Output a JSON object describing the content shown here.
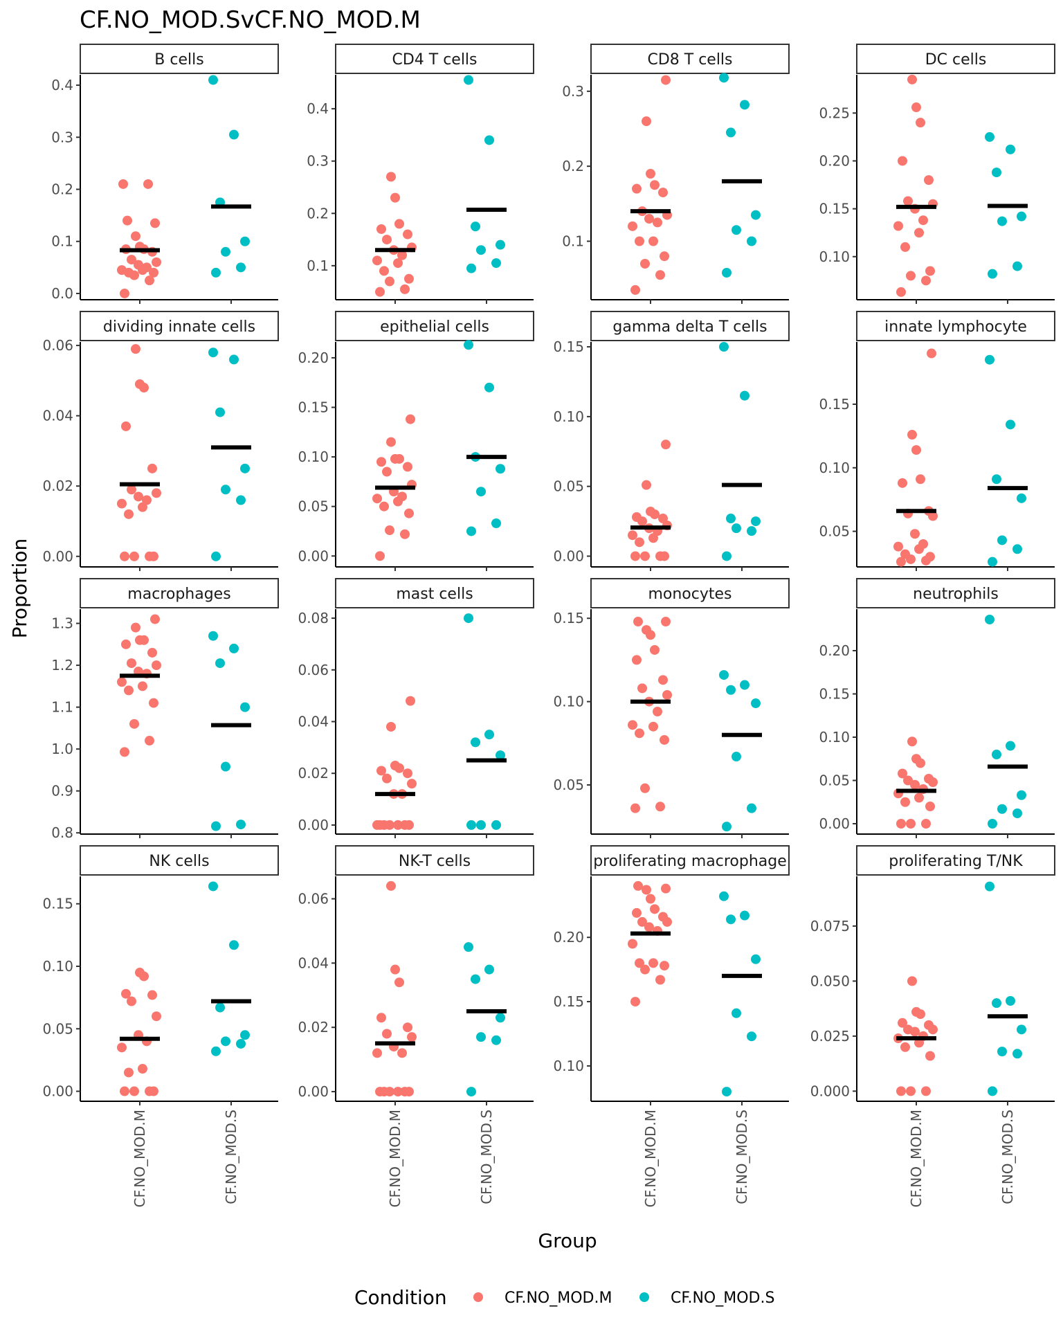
{
  "chart_data": {
    "type": "scatter",
    "title": "CF.NO_MOD.SvCF.NO_MOD.M",
    "xlabel": "Group",
    "ylabel": "Proportion",
    "categories": [
      "CF.NO_MOD.M",
      "CF.NO_MOD.S"
    ],
    "legend": {
      "title": "Condition",
      "position": "bottom",
      "entries": [
        {
          "label": "CF.NO_MOD.M",
          "color": "#F8766D"
        },
        {
          "label": "CF.NO_MOD.S",
          "color": "#00BFC4"
        }
      ]
    },
    "colors": {
      "CF.NO_MOD.M": "#F8766D",
      "CF.NO_MOD.S": "#00BFC4",
      "median": "#000000"
    },
    "facets": [
      {
        "name": "B cells",
        "ylim": [
          -0.012,
          0.42
        ],
        "yticks": [
          "0.0",
          "0.1",
          "0.2",
          "0.3",
          "0.4"
        ],
        "series": [
          {
            "name": "CF.NO_MOD.M",
            "median": 0.083,
            "values": [
              0.0,
              0.025,
              0.035,
              0.04,
              0.04,
              0.045,
              0.045,
              0.05,
              0.055,
              0.06,
              0.065,
              0.08,
              0.085,
              0.085,
              0.09,
              0.11,
              0.135,
              0.14,
              0.21,
              0.21
            ]
          },
          {
            "name": "CF.NO_MOD.S",
            "median": 0.167,
            "values": [
              0.04,
              0.05,
              0.08,
              0.1,
              0.175,
              0.305,
              0.41
            ]
          }
        ]
      },
      {
        "name": "CD4 T cells",
        "ylim": [
          0.035,
          0.465
        ],
        "yticks": [
          "0.1",
          "0.2",
          "0.3",
          "0.4"
        ],
        "series": [
          {
            "name": "CF.NO_MOD.M",
            "median": 0.13,
            "values": [
              0.05,
              0.055,
              0.07,
              0.075,
              0.09,
              0.105,
              0.11,
              0.12,
              0.13,
              0.135,
              0.15,
              0.16,
              0.17,
              0.18,
              0.23,
              0.27
            ]
          },
          {
            "name": "CF.NO_MOD.S",
            "median": 0.207,
            "values": [
              0.095,
              0.105,
              0.13,
              0.14,
              0.175,
              0.34,
              0.455
            ]
          }
        ]
      },
      {
        "name": "CD8 T cells",
        "ylim": [
          0.022,
          0.322
        ],
        "yticks": [
          "0.1",
          "0.2",
          "0.3"
        ],
        "series": [
          {
            "name": "CF.NO_MOD.M",
            "median": 0.14,
            "values": [
              0.035,
              0.055,
              0.07,
              0.08,
              0.1,
              0.1,
              0.12,
              0.125,
              0.13,
              0.135,
              0.14,
              0.165,
              0.17,
              0.175,
              0.19,
              0.26,
              0.315
            ]
          },
          {
            "name": "CF.NO_MOD.S",
            "median": 0.18,
            "values": [
              0.058,
              0.1,
              0.115,
              0.135,
              0.245,
              0.282,
              0.318
            ]
          }
        ]
      },
      {
        "name": "DC cells",
        "ylim": [
          0.055,
          0.29
        ],
        "yticks": [
          "0.10",
          "0.15",
          "0.20",
          "0.25"
        ],
        "series": [
          {
            "name": "CF.NO_MOD.M",
            "median": 0.152,
            "values": [
              0.063,
              0.075,
              0.08,
              0.085,
              0.11,
              0.125,
              0.132,
              0.138,
              0.15,
              0.155,
              0.158,
              0.18,
              0.2,
              0.24,
              0.256,
              0.285
            ]
          },
          {
            "name": "CF.NO_MOD.S",
            "median": 0.153,
            "values": [
              0.082,
              0.09,
              0.137,
              0.142,
              0.188,
              0.212,
              0.225
            ]
          }
        ]
      },
      {
        "name": "dividing innate cells",
        "ylim": [
          -0.003,
          0.061
        ],
        "yticks": [
          "0.00",
          "0.02",
          "0.04",
          "0.06"
        ],
        "series": [
          {
            "name": "CF.NO_MOD.M",
            "median": 0.0205,
            "values": [
              0.0,
              0.0,
              0.0,
              0.0,
              0.012,
              0.014,
              0.015,
              0.016,
              0.017,
              0.018,
              0.019,
              0.025,
              0.037,
              0.048,
              0.049,
              0.059
            ]
          },
          {
            "name": "CF.NO_MOD.S",
            "median": 0.031,
            "values": [
              0.0,
              0.016,
              0.019,
              0.025,
              0.041,
              0.056,
              0.058
            ]
          }
        ]
      },
      {
        "name": "epithelial cells",
        "ylim": [
          -0.011,
          0.216
        ],
        "yticks": [
          "0.00",
          "0.05",
          "0.10",
          "0.15",
          "0.20"
        ],
        "series": [
          {
            "name": "CF.NO_MOD.M",
            "median": 0.069,
            "values": [
              0.0,
              0.022,
              0.026,
              0.043,
              0.05,
              0.055,
              0.058,
              0.06,
              0.065,
              0.072,
              0.085,
              0.09,
              0.095,
              0.098,
              0.098,
              0.115,
              0.138
            ]
          },
          {
            "name": "CF.NO_MOD.S",
            "median": 0.1,
            "values": [
              0.025,
              0.033,
              0.065,
              0.088,
              0.1,
              0.17,
              0.213
            ]
          }
        ]
      },
      {
        "name": "gamma delta T cells",
        "ylim": [
          -0.0077,
          0.1535
        ],
        "yticks": [
          "0.00",
          "0.05",
          "0.10",
          "0.15"
        ],
        "series": [
          {
            "name": "CF.NO_MOD.M",
            "median": 0.0205,
            "values": [
              0.0,
              0.0,
              0.0,
              0.0,
              0.01,
              0.013,
              0.015,
              0.018,
              0.02,
              0.022,
              0.025,
              0.027,
              0.028,
              0.03,
              0.032,
              0.051,
              0.08
            ]
          },
          {
            "name": "CF.NO_MOD.S",
            "median": 0.051,
            "values": [
              0.0,
              0.018,
              0.02,
              0.025,
              0.027,
              0.115,
              0.15
            ]
          }
        ]
      },
      {
        "name": "innate lymphocyte",
        "ylim": [
          0.022,
          0.199
        ],
        "yticks": [
          "0.05",
          "0.10",
          "0.15"
        ],
        "series": [
          {
            "name": "CF.NO_MOD.M",
            "median": 0.066,
            "values": [
              0.026,
              0.027,
              0.028,
              0.03,
              0.032,
              0.036,
              0.038,
              0.04,
              0.048,
              0.062,
              0.064,
              0.066,
              0.088,
              0.091,
              0.114,
              0.126,
              0.19
            ]
          },
          {
            "name": "CF.NO_MOD.S",
            "median": 0.084,
            "values": [
              0.026,
              0.036,
              0.043,
              0.076,
              0.091,
              0.134,
              0.185
            ]
          }
        ]
      },
      {
        "name": "macrophages",
        "ylim": [
          0.797,
          1.334
        ],
        "yticks": [
          "0.8",
          "0.9",
          "1.0",
          "1.1",
          "1.2",
          "1.3"
        ],
        "series": [
          {
            "name": "CF.NO_MOD.M",
            "median": 1.175,
            "values": [
              0.993,
              1.02,
              1.06,
              1.11,
              1.14,
              1.15,
              1.16,
              1.18,
              1.185,
              1.2,
              1.205,
              1.23,
              1.25,
              1.26,
              1.26,
              1.29,
              1.31
            ]
          },
          {
            "name": "CF.NO_MOD.S",
            "median": 1.057,
            "values": [
              0.816,
              0.82,
              0.958,
              1.1,
              1.205,
              1.24,
              1.27
            ]
          }
        ]
      },
      {
        "name": "mast cells",
        "ylim": [
          -0.0035,
          0.0835
        ],
        "yticks": [
          "0.00",
          "0.02",
          "0.04",
          "0.06",
          "0.08"
        ],
        "series": [
          {
            "name": "CF.NO_MOD.M",
            "median": 0.012,
            "values": [
              0.0,
              0.0,
              0.0,
              0.0,
              0.0,
              0.0,
              0.0,
              0.012,
              0.012,
              0.016,
              0.018,
              0.02,
              0.021,
              0.022,
              0.023,
              0.038,
              0.048
            ]
          },
          {
            "name": "CF.NO_MOD.S",
            "median": 0.025,
            "values": [
              0.0,
              0.0,
              0.0,
              0.027,
              0.032,
              0.035,
              0.08
            ]
          }
        ]
      },
      {
        "name": "monocytes",
        "ylim": [
          0.0205,
          0.1555
        ],
        "yticks": [
          "0.05",
          "0.10",
          "0.15"
        ],
        "series": [
          {
            "name": "CF.NO_MOD.M",
            "median": 0.1,
            "values": [
              0.036,
              0.037,
              0.048,
              0.077,
              0.081,
              0.085,
              0.086,
              0.094,
              0.1,
              0.104,
              0.108,
              0.113,
              0.125,
              0.131,
              0.14,
              0.143,
              0.148,
              0.148
            ]
          },
          {
            "name": "CF.NO_MOD.S",
            "median": 0.08,
            "values": [
              0.025,
              0.036,
              0.067,
              0.099,
              0.107,
              0.11,
              0.116
            ]
          }
        ]
      },
      {
        "name": "neutrophils",
        "ylim": [
          -0.012,
          0.248
        ],
        "yticks": [
          "0.00",
          "0.05",
          "0.10",
          "0.15",
          "0.20"
        ],
        "series": [
          {
            "name": "CF.NO_MOD.M",
            "median": 0.038,
            "values": [
              0.0,
              0.0,
              0.0,
              0.02,
              0.025,
              0.03,
              0.035,
              0.04,
              0.045,
              0.048,
              0.05,
              0.052,
              0.058,
              0.07,
              0.075,
              0.095
            ]
          },
          {
            "name": "CF.NO_MOD.S",
            "median": 0.066,
            "values": [
              0.0,
              0.012,
              0.017,
              0.033,
              0.08,
              0.09,
              0.236
            ]
          }
        ]
      },
      {
        "name": "NK cells",
        "ylim": [
          -0.008,
          0.172
        ],
        "yticks": [
          "0.00",
          "0.05",
          "0.10",
          "0.15"
        ],
        "series": [
          {
            "name": "CF.NO_MOD.M",
            "median": 0.042,
            "values": [
              0.0,
              0.0,
              0.0,
              0.0,
              0.015,
              0.018,
              0.035,
              0.04,
              0.045,
              0.06,
              0.072,
              0.077,
              0.078,
              0.092,
              0.095
            ]
          },
          {
            "name": "CF.NO_MOD.S",
            "median": 0.072,
            "values": [
              0.032,
              0.038,
              0.04,
              0.045,
              0.067,
              0.117,
              0.164
            ]
          }
        ]
      },
      {
        "name": "NK-T cells",
        "ylim": [
          -0.003,
          0.067
        ],
        "yticks": [
          "0.00",
          "0.02",
          "0.04",
          "0.06"
        ],
        "series": [
          {
            "name": "CF.NO_MOD.M",
            "median": 0.015,
            "values": [
              0.0,
              0.0,
              0.0,
              0.0,
              0.0,
              0.0,
              0.012,
              0.012,
              0.014,
              0.017,
              0.018,
              0.02,
              0.023,
              0.034,
              0.038,
              0.064
            ]
          },
          {
            "name": "CF.NO_MOD.S",
            "median": 0.025,
            "values": [
              0.0,
              0.016,
              0.017,
              0.023,
              0.035,
              0.038,
              0.045
            ]
          }
        ]
      },
      {
        "name": "proliferating macrophage",
        "ylim": [
          0.0725,
          0.2475
        ],
        "yticks": [
          "0.10",
          "0.15",
          "0.20"
        ],
        "series": [
          {
            "name": "CF.NO_MOD.M",
            "median": 0.203,
            "values": [
              0.15,
              0.167,
              0.175,
              0.178,
              0.18,
              0.18,
              0.195,
              0.205,
              0.208,
              0.212,
              0.212,
              0.216,
              0.219,
              0.222,
              0.23,
              0.237,
              0.238,
              0.24
            ]
          },
          {
            "name": "CF.NO_MOD.S",
            "median": 0.17,
            "values": [
              0.08,
              0.123,
              0.141,
              0.183,
              0.214,
              0.217,
              0.232
            ]
          }
        ]
      },
      {
        "name": "proliferating T/NK",
        "ylim": [
          -0.0046,
          0.0976
        ],
        "yticks": [
          "0.000",
          "0.025",
          "0.050",
          "0.075"
        ],
        "series": [
          {
            "name": "CF.NO_MOD.M",
            "median": 0.024,
            "values": [
              0.0,
              0.0,
              0.0,
              0.016,
              0.02,
              0.022,
              0.024,
              0.025,
              0.027,
              0.028,
              0.028,
              0.03,
              0.031,
              0.035,
              0.036,
              0.05
            ]
          },
          {
            "name": "CF.NO_MOD.S",
            "median": 0.034,
            "values": [
              0.0,
              0.017,
              0.018,
              0.028,
              0.04,
              0.041,
              0.093
            ]
          }
        ]
      }
    ]
  }
}
